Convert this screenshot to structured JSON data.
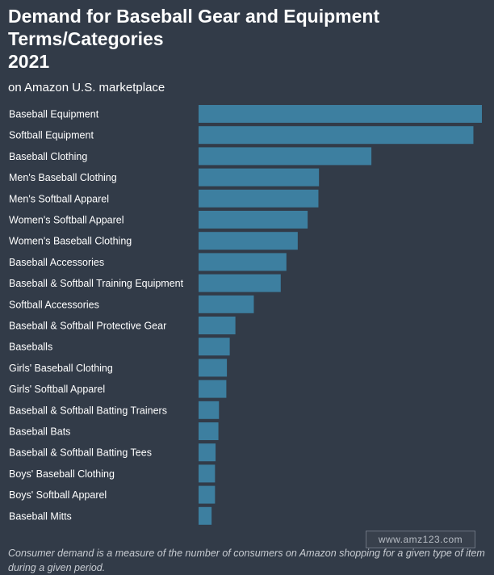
{
  "header": {
    "title_line1": "Demand for Baseball Gear and Equipment",
    "title_line2": "Terms/Categories",
    "title_line3": "2021",
    "subtitle": "on Amazon U.S. marketplace"
  },
  "footnote": "Consumer demand is a measure of the number of consumers on Amazon shopping for a given type of item during a given period.",
  "watermark": "www.amz123.com",
  "colors": {
    "background": "#323b48",
    "bar": "#3d7fa0"
  },
  "chart_data": {
    "type": "bar",
    "orientation": "horizontal",
    "title": "Demand for Baseball Gear and Equipment Terms/Categories 2021",
    "subtitle": "on Amazon U.S. marketplace",
    "xlabel": "",
    "ylabel": "",
    "grid": false,
    "value_scale": "relative (Baseball Equipment = 100)",
    "categories": [
      "Baseball Equipment",
      "Softball Equipment",
      "Baseball Clothing",
      "Men's Baseball Clothing",
      "Men's Softball Apparel",
      "Women's Softball Apparel",
      "Women's Baseball Clothing",
      "Baseball Accessories",
      "Baseball & Softball Training Equipment",
      "Softball Accessories",
      "Baseball & Softball Protective Gear",
      "Baseballs",
      "Girls' Baseball Clothing",
      "Girls' Softball Apparel",
      "Baseball & Softball Batting Trainers",
      "Baseball Bats",
      "Baseball & Softball Batting Tees",
      "Boys' Baseball Clothing",
      "Boys' Softball Apparel",
      "Baseball Mitts"
    ],
    "values": [
      100,
      97,
      61,
      42.5,
      42.3,
      38.5,
      35,
      31,
      29,
      19.5,
      13,
      11,
      10,
      9.8,
      7.2,
      7,
      6,
      5.8,
      5.8,
      4.6
    ]
  }
}
